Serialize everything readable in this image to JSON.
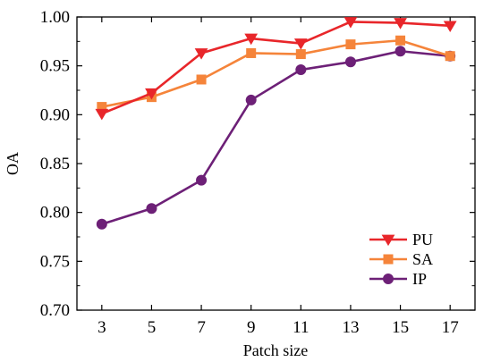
{
  "chart_data": {
    "type": "line",
    "title": "",
    "xlabel": "Patch size",
    "ylabel": "OA",
    "x": [
      3,
      5,
      7,
      9,
      11,
      13,
      15,
      17
    ],
    "x_ticks": [
      "3",
      "5",
      "7",
      "9",
      "11",
      "13",
      "15",
      "17"
    ],
    "xlim": [
      2,
      18
    ],
    "ylim": [
      0.7,
      1.0
    ],
    "y_ticks": [
      "0.70",
      "0.75",
      "0.80",
      "0.85",
      "0.90",
      "0.95",
      "1.00"
    ],
    "grid": false,
    "legend_position": "bottom-right",
    "series": [
      {
        "name": "PU",
        "color": "#e8262a",
        "marker": "triangle-down",
        "values": [
          0.901,
          0.922,
          0.963,
          0.978,
          0.973,
          0.995,
          0.994,
          0.991
        ]
      },
      {
        "name": "SA",
        "color": "#f5843a",
        "marker": "square",
        "values": [
          0.908,
          0.918,
          0.936,
          0.963,
          0.962,
          0.972,
          0.976,
          0.96
        ]
      },
      {
        "name": "IP",
        "color": "#6d2077",
        "marker": "circle",
        "values": [
          0.788,
          0.804,
          0.833,
          0.915,
          0.946,
          0.954,
          0.965,
          0.96
        ]
      }
    ]
  }
}
